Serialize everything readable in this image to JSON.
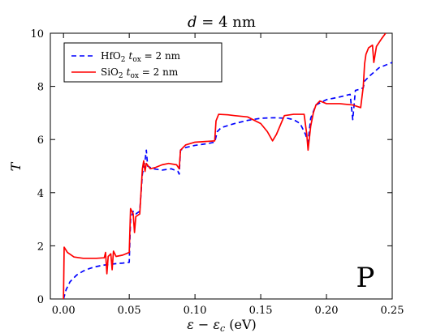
{
  "chart_data": {
    "type": "line",
    "title": "d = 4 nm",
    "xlabel": "ε − ε_c (eV)",
    "ylabel": "T",
    "xlim": [
      -0.01,
      0.25
    ],
    "ylim": [
      0,
      10
    ],
    "xticks": [
      "0.00",
      "0.05",
      "0.10",
      "0.15",
      "0.20",
      "0.25"
    ],
    "xtick_values": [
      0.0,
      0.05,
      0.1,
      0.15,
      0.2,
      0.25
    ],
    "yticks": [
      "0",
      "2",
      "4",
      "6",
      "8",
      "10"
    ],
    "ytick_values": [
      0,
      2,
      4,
      6,
      8,
      10
    ],
    "grid": false,
    "legend_position": "top-left",
    "annotation": "P",
    "series": [
      {
        "name": "HfO2 t_ox = 2 nm",
        "color": "#0000ff",
        "style": "dashed",
        "points": [
          [
            0.0,
            0.0
          ],
          [
            0.002,
            0.35
          ],
          [
            0.005,
            0.65
          ],
          [
            0.01,
            0.9
          ],
          [
            0.015,
            1.05
          ],
          [
            0.02,
            1.15
          ],
          [
            0.025,
            1.22
          ],
          [
            0.03,
            1.27
          ],
          [
            0.035,
            1.3
          ],
          [
            0.04,
            1.33
          ],
          [
            0.045,
            1.35
          ],
          [
            0.05,
            1.38
          ],
          [
            0.051,
            3.0
          ],
          [
            0.053,
            3.3
          ],
          [
            0.055,
            3.2
          ],
          [
            0.058,
            3.3
          ],
          [
            0.06,
            4.7
          ],
          [
            0.062,
            5.2
          ],
          [
            0.063,
            5.6
          ],
          [
            0.064,
            5.0
          ],
          [
            0.068,
            4.9
          ],
          [
            0.075,
            4.85
          ],
          [
            0.082,
            4.9
          ],
          [
            0.087,
            4.8
          ],
          [
            0.088,
            4.7
          ],
          [
            0.089,
            5.6
          ],
          [
            0.093,
            5.7
          ],
          [
            0.1,
            5.78
          ],
          [
            0.11,
            5.85
          ],
          [
            0.115,
            5.9
          ],
          [
            0.117,
            6.3
          ],
          [
            0.12,
            6.45
          ],
          [
            0.13,
            6.6
          ],
          [
            0.14,
            6.72
          ],
          [
            0.15,
            6.8
          ],
          [
            0.16,
            6.82
          ],
          [
            0.17,
            6.8
          ],
          [
            0.175,
            6.75
          ],
          [
            0.18,
            6.6
          ],
          [
            0.184,
            6.2
          ],
          [
            0.186,
            5.9
          ],
          [
            0.188,
            6.8
          ],
          [
            0.192,
            7.3
          ],
          [
            0.2,
            7.5
          ],
          [
            0.21,
            7.6
          ],
          [
            0.218,
            7.7
          ],
          [
            0.22,
            6.75
          ],
          [
            0.222,
            7.85
          ],
          [
            0.226,
            7.9
          ],
          [
            0.228,
            7.95
          ],
          [
            0.229,
            8.2
          ],
          [
            0.233,
            8.4
          ],
          [
            0.24,
            8.7
          ],
          [
            0.25,
            8.9
          ]
        ]
      },
      {
        "name": "SiO2 t_ox = 2 nm",
        "color": "#ff0000",
        "style": "solid",
        "points": [
          [
            0.0,
            0.0
          ],
          [
            0.0005,
            1.95
          ],
          [
            0.003,
            1.75
          ],
          [
            0.008,
            1.58
          ],
          [
            0.015,
            1.53
          ],
          [
            0.025,
            1.53
          ],
          [
            0.031,
            1.55
          ],
          [
            0.032,
            1.75
          ],
          [
            0.033,
            0.95
          ],
          [
            0.034,
            1.6
          ],
          [
            0.036,
            1.7
          ],
          [
            0.037,
            1.1
          ],
          [
            0.038,
            1.8
          ],
          [
            0.04,
            1.6
          ],
          [
            0.045,
            1.65
          ],
          [
            0.05,
            1.75
          ],
          [
            0.051,
            3.4
          ],
          [
            0.053,
            3.2
          ],
          [
            0.054,
            2.5
          ],
          [
            0.055,
            3.1
          ],
          [
            0.058,
            3.2
          ],
          [
            0.06,
            4.9
          ],
          [
            0.061,
            5.2
          ],
          [
            0.062,
            4.8
          ],
          [
            0.063,
            5.1
          ],
          [
            0.066,
            4.9
          ],
          [
            0.07,
            4.95
          ],
          [
            0.075,
            5.05
          ],
          [
            0.08,
            5.1
          ],
          [
            0.086,
            5.05
          ],
          [
            0.088,
            4.9
          ],
          [
            0.089,
            5.6
          ],
          [
            0.093,
            5.8
          ],
          [
            0.1,
            5.9
          ],
          [
            0.115,
            5.95
          ],
          [
            0.116,
            6.7
          ],
          [
            0.118,
            6.95
          ],
          [
            0.125,
            6.93
          ],
          [
            0.13,
            6.9
          ],
          [
            0.14,
            6.85
          ],
          [
            0.15,
            6.6
          ],
          [
            0.155,
            6.3
          ],
          [
            0.159,
            5.95
          ],
          [
            0.162,
            6.2
          ],
          [
            0.168,
            6.9
          ],
          [
            0.175,
            6.95
          ],
          [
            0.183,
            6.95
          ],
          [
            0.185,
            6.2
          ],
          [
            0.186,
            5.6
          ],
          [
            0.188,
            6.5
          ],
          [
            0.19,
            7.0
          ],
          [
            0.192,
            7.3
          ],
          [
            0.195,
            7.45
          ],
          [
            0.2,
            7.35
          ],
          [
            0.21,
            7.35
          ],
          [
            0.22,
            7.3
          ],
          [
            0.226,
            7.2
          ],
          [
            0.228,
            8.0
          ],
          [
            0.229,
            8.85
          ],
          [
            0.23,
            9.2
          ],
          [
            0.232,
            9.45
          ],
          [
            0.235,
            9.55
          ],
          [
            0.236,
            8.9
          ],
          [
            0.238,
            9.5
          ],
          [
            0.242,
            9.8
          ],
          [
            0.245,
            10.0
          ]
        ]
      }
    ]
  },
  "legend": {
    "entries": [
      {
        "formula": "HfO",
        "subscript": "2",
        "t_label": "t",
        "t_subscript": "ox",
        "value": " = 2 nm"
      },
      {
        "formula": "SiO",
        "subscript": "2",
        "t_label": "t",
        "t_subscript": "ox",
        "value": " = 2 nm"
      }
    ]
  },
  "title_parts": {
    "var": "d",
    "rest": " = 4 nm"
  },
  "xlabel_parts": {
    "eps": "ε",
    "minus": " − ",
    "eps_c": "ε",
    "sub": "c",
    "unit": " (eV)"
  },
  "ylabel_text": "T"
}
